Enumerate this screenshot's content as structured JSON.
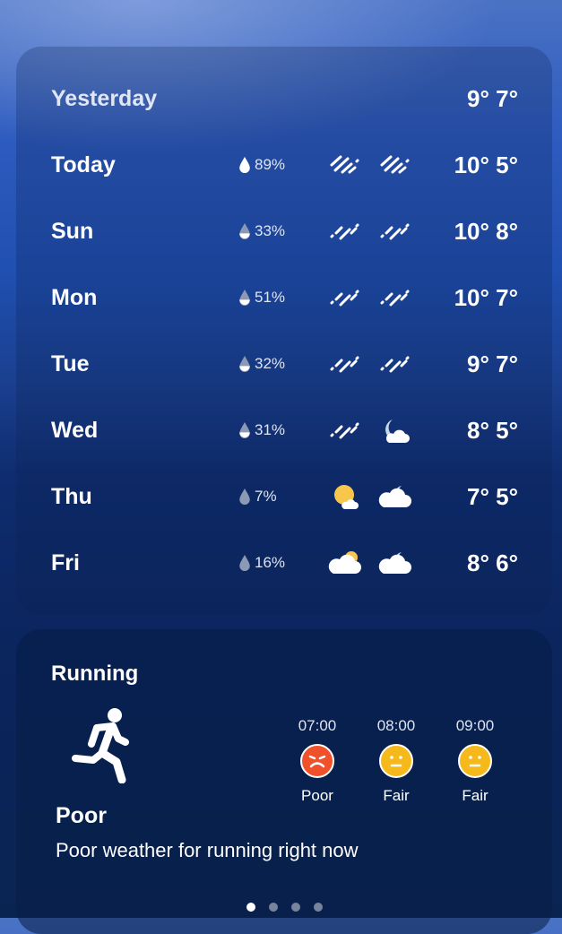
{
  "forecast": {
    "yesterday": {
      "day": "Yesterday",
      "temps": "9° 7°"
    },
    "days": [
      {
        "day": "Today",
        "precip": "89%",
        "drop": "full",
        "icon_day": "heavy-rain",
        "icon_night": "heavy-rain",
        "temps": "10° 5°"
      },
      {
        "day": "Sun",
        "precip": "33%",
        "drop": "half",
        "icon_day": "rain",
        "icon_night": "rain",
        "temps": "10° 8°"
      },
      {
        "day": "Mon",
        "precip": "51%",
        "drop": "half",
        "icon_day": "rain",
        "icon_night": "rain",
        "temps": "10° 7°"
      },
      {
        "day": "Tue",
        "precip": "32%",
        "drop": "half",
        "icon_day": "rain",
        "icon_night": "rain",
        "temps": "9° 7°"
      },
      {
        "day": "Wed",
        "precip": "31%",
        "drop": "half",
        "icon_day": "rain",
        "icon_night": "moon-cloud",
        "temps": "8° 5°"
      },
      {
        "day": "Thu",
        "precip": "7%",
        "drop": "empty",
        "icon_day": "sun-cloud",
        "icon_night": "cloud-moon",
        "temps": "7° 5°"
      },
      {
        "day": "Fri",
        "precip": "16%",
        "drop": "empty",
        "icon_day": "cloud-sun",
        "icon_night": "cloud-moon",
        "temps": "8° 6°"
      }
    ]
  },
  "running": {
    "title": "Running",
    "status": "Poor",
    "description": "Poor weather for running right now",
    "slots": [
      {
        "time": "07:00",
        "label": "Poor",
        "color": "#f0512b",
        "mood": "sad"
      },
      {
        "time": "08:00",
        "label": "Fair",
        "color": "#f6b91c",
        "mood": "neutral"
      },
      {
        "time": "09:00",
        "label": "Fair",
        "color": "#f6b91c",
        "mood": "neutral"
      }
    ]
  },
  "pager": {
    "pages": 4,
    "active": 0
  }
}
